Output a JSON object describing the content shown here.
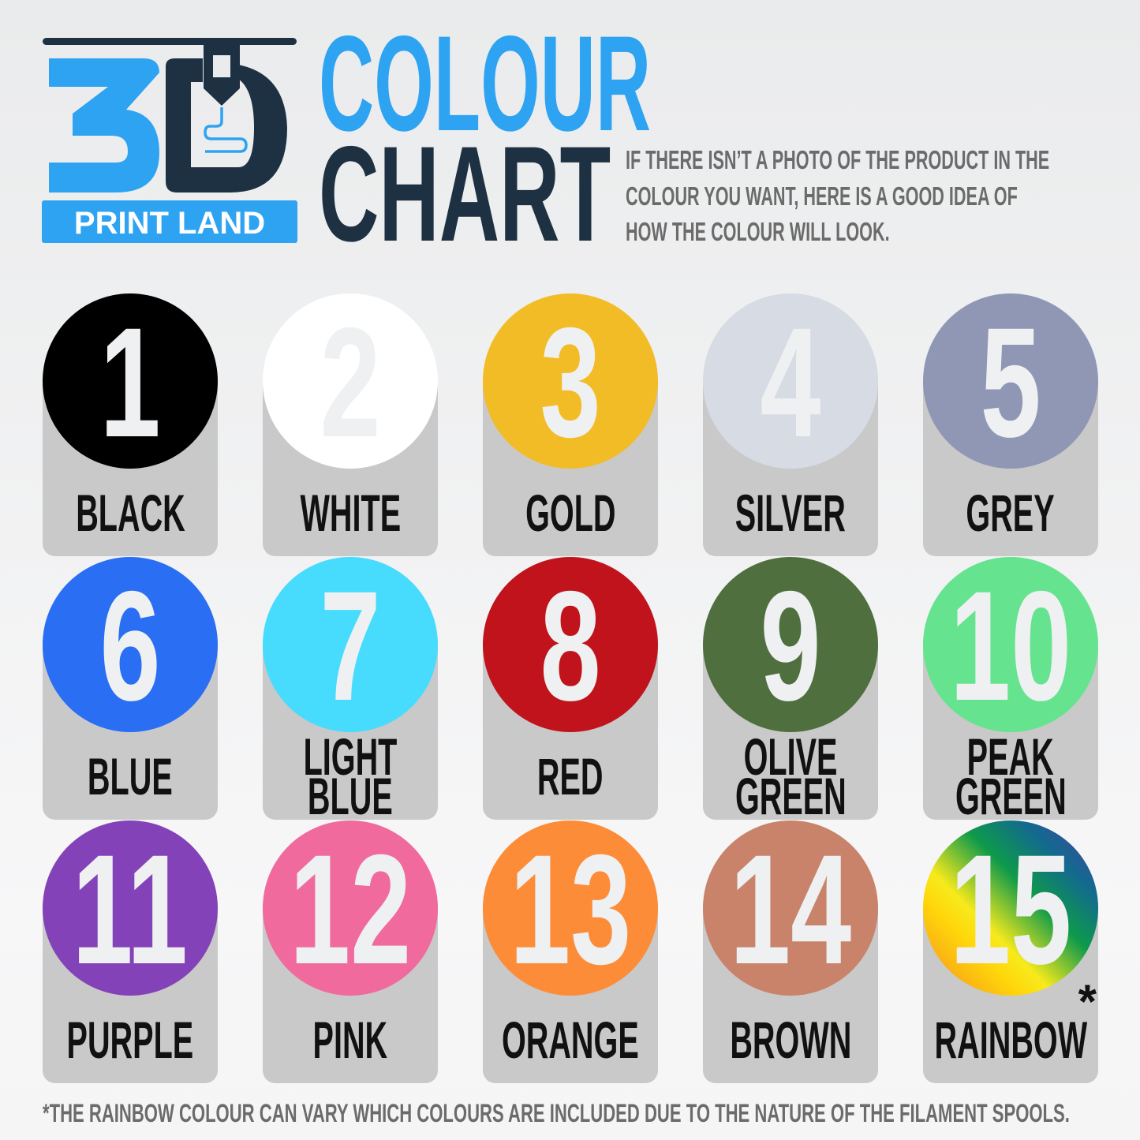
{
  "logo": {
    "mark": "3D",
    "wordmark": "PRINT LAND",
    "colors": {
      "blue": "#2ea3f2",
      "navy": "#1e3142"
    }
  },
  "title": {
    "line1": "COLOUR",
    "line2": "CHART"
  },
  "subtitle": [
    "IF THERE ISN’T A PHOTO OF THE PRODUCT IN THE",
    "COLOUR YOU WANT, HERE IS A GOOD IDEA OF",
    "HOW THE COLOUR WILL LOOK."
  ],
  "colours": [
    {
      "number": "1",
      "label": [
        "BLACK"
      ],
      "color": "#000000"
    },
    {
      "number": "2",
      "label": [
        "WHITE"
      ],
      "color": "#ffffff"
    },
    {
      "number": "3",
      "label": [
        "GOLD"
      ],
      "color": "#f2bc26"
    },
    {
      "number": "4",
      "label": [
        "SILVER"
      ],
      "color": "#d6dbe4"
    },
    {
      "number": "5",
      "label": [
        "GREY"
      ],
      "color": "#9097b4"
    },
    {
      "number": "6",
      "label": [
        "BLUE"
      ],
      "color": "#2a6ef3"
    },
    {
      "number": "7",
      "label": [
        "LIGHT",
        "BLUE"
      ],
      "color": "#47dbfd"
    },
    {
      "number": "8",
      "label": [
        "RED"
      ],
      "color": "#c1131c"
    },
    {
      "number": "9",
      "label": [
        "OLIVE",
        "GREEN"
      ],
      "color": "#4f6f3e"
    },
    {
      "number": "10",
      "label": [
        "PEAK",
        "GREEN"
      ],
      "color": "#66e38f"
    },
    {
      "number": "11",
      "label": [
        "PURPLE"
      ],
      "color": "#8442b8"
    },
    {
      "number": "12",
      "label": [
        "PINK"
      ],
      "color": "#f06a9e"
    },
    {
      "number": "13",
      "label": [
        "ORANGE"
      ],
      "color": "#fd8c38"
    },
    {
      "number": "14",
      "label": [
        "BROWN"
      ],
      "color": "#c8836a"
    },
    {
      "number": "15",
      "label": [
        "RAINBOW"
      ],
      "color": "rainbow",
      "asterisk": "*"
    }
  ],
  "footnote": "*THE RAINBOW COLOUR CAN VARY WHICH COLOURS ARE INCLUDED DUE TO THE NATURE OF THE FILAMENT SPOOLS."
}
